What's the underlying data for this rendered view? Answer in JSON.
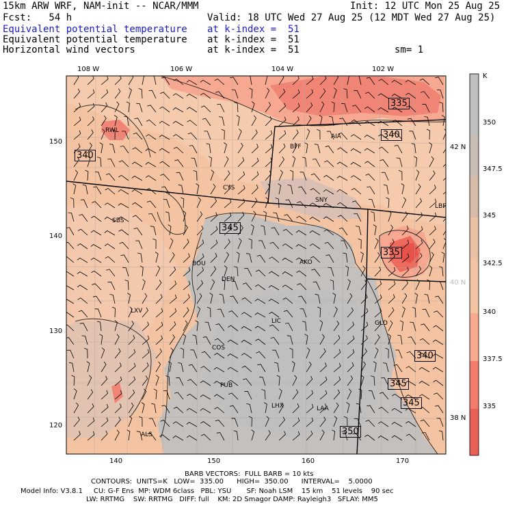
{
  "header": {
    "model": "15km ARW WRF, NAM-init -- NCAR/MMM",
    "init": "Init: 12 UTC Mon 25 Aug 25",
    "fcst": "Fcst:   54 h",
    "valid": "Valid: 18 UTC Wed 27 Aug 25 (12 MDT Wed 27 Aug 25)",
    "fields": [
      {
        "name": "Equivalent potential temperature",
        "level": "at k-index =  51",
        "color": "#1a1acc"
      },
      {
        "name": "Equivalent potential temperature",
        "level": "at k-index =  51",
        "color": "#000000"
      },
      {
        "name": "Horizontal wind vectors",
        "level": "at k-index =  51",
        "color": "#000000"
      }
    ],
    "smoothing": "sm= 1"
  },
  "map": {
    "top_lon_labels": [
      "108 W",
      "106 W",
      "104 W",
      "102 W"
    ],
    "right_lat_labels": [
      "42 N",
      "40 N",
      "38 N"
    ],
    "left_grid_labels": [
      "150",
      "140",
      "130",
      "120"
    ],
    "bottom_grid_labels": [
      "140",
      "150",
      "160",
      "170"
    ],
    "stations": [
      "RWL",
      "BFF",
      "AIA",
      "CYS",
      "SNY",
      "SBS",
      "LBF",
      "BOU",
      "AKO",
      "DEN",
      "LXV",
      "LIC",
      "GLD",
      "COS",
      "PUB",
      "LHX",
      "LAA",
      "ALS"
    ],
    "contour_labels": [
      "335",
      "340",
      "340",
      "345",
      "335",
      "340",
      "345",
      "345",
      "350"
    ]
  },
  "colorbar": {
    "unit": "K",
    "labels": [
      "350",
      "347.5",
      "345",
      "342.5",
      "340",
      "337.5",
      "335"
    ],
    "colors": [
      "#c0c0c0",
      "#c9bdb6",
      "#d6bba9",
      "#ecc0a4",
      "#f4c4a2",
      "#f8aa90",
      "#f27b6a",
      "#e85f55"
    ]
  },
  "footer": {
    "barb": "BARB VECTORS:  FULL BARB = 10 kts",
    "contours": "CONTOURS:  UNITS=K   LOW=  335.00      HIGH=  350.00      INTERVAL=    5.0000",
    "model_info": "Model Info: V3.8.1     CU: G-F Ens  MP: WDM 6class   PBL: YSU       SF: Noah LSM    15 km    51 levels    90 sec",
    "physics": "LW: RRTMG    SW: RRTMG   DIFF: full    KM: 2D Smagor DAMP: Rayleigh3   SFLAY: MM5"
  }
}
